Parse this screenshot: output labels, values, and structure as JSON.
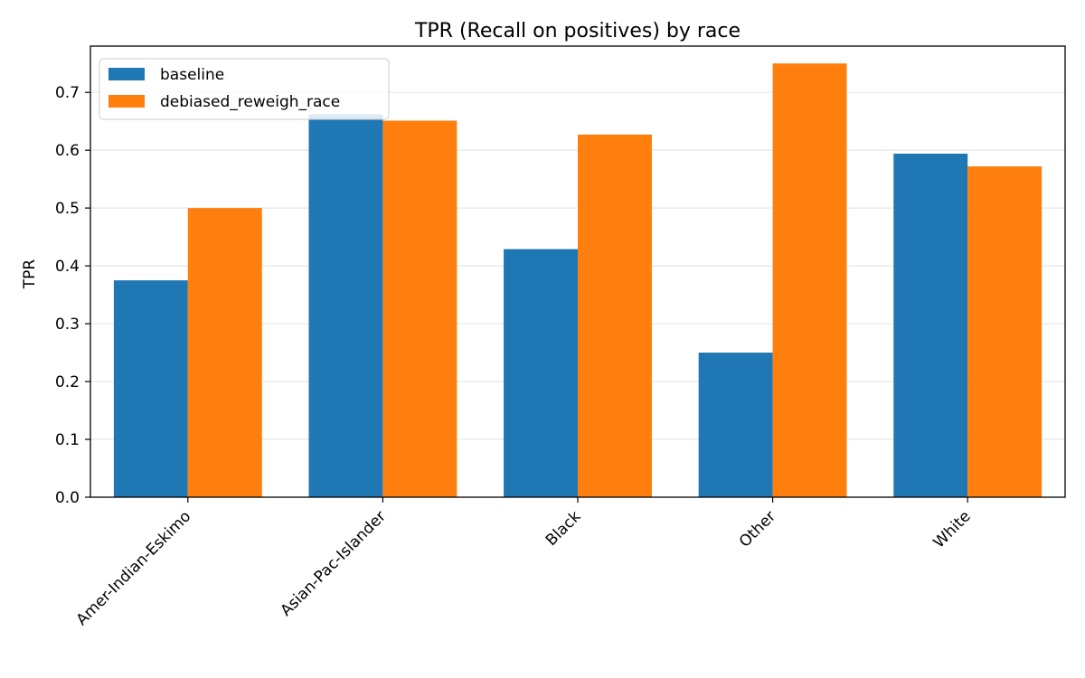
{
  "chart_data": {
    "type": "bar",
    "title": "TPR (Recall on positives) by race",
    "xlabel": "",
    "ylabel": "TPR",
    "categories": [
      "Amer-Indian-Eskimo",
      "Asian-Pac-Islander",
      "Black",
      "Other",
      "White"
    ],
    "series": [
      {
        "name": "baseline",
        "color": "#1f77b4",
        "values": [
          0.375,
          0.662,
          0.429,
          0.25,
          0.594
        ]
      },
      {
        "name": "debiased_reweigh_race",
        "color": "#ff7f0e",
        "values": [
          0.5,
          0.651,
          0.627,
          0.75,
          0.572
        ]
      }
    ],
    "ylim": [
      0,
      0.78
    ],
    "yticks": [
      0.0,
      0.1,
      0.2,
      0.3,
      0.4,
      0.5,
      0.6,
      0.7
    ],
    "ytick_labels": [
      "0.0",
      "0.1",
      "0.2",
      "0.3",
      "0.4",
      "0.5",
      "0.6",
      "0.7"
    ],
    "grid": "horizontal",
    "legend": "top-left"
  }
}
